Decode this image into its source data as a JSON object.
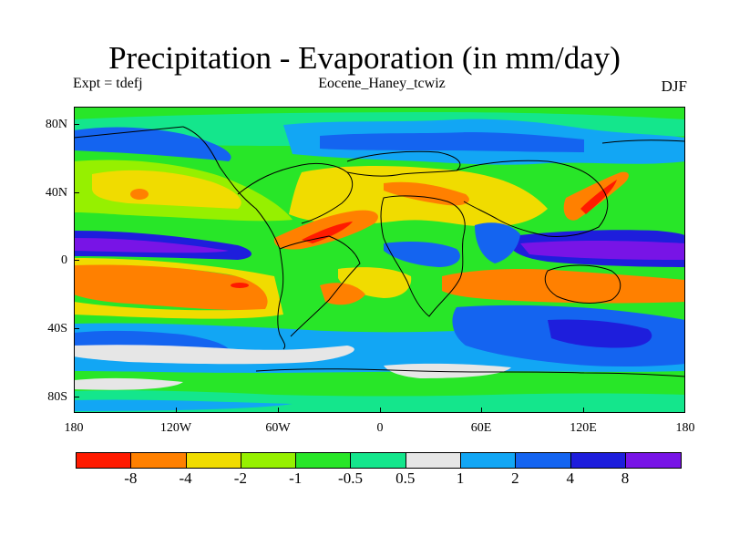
{
  "title": "Precipitation - Evaporation (in mm/day)",
  "subtitle_left": "Expt = tdefj",
  "subtitle_center": "Eocene_Haney_tcwiz",
  "subtitle_right": "DJF",
  "lat_labels": [
    "80N",
    "40N",
    "0",
    "40S",
    "80S"
  ],
  "lon_labels": [
    "180",
    "120W",
    "60W",
    "0",
    "60E",
    "120E",
    "180"
  ],
  "colorbar": {
    "colors": [
      "#ff1a00",
      "#ff8000",
      "#f0dc00",
      "#96f000",
      "#28e628",
      "#14e68c",
      "#e6e6e6",
      "#12a6f4",
      "#1464f0",
      "#1e1edc",
      "#7814e6"
    ],
    "labels": [
      "-8",
      "-4",
      "-2",
      "-1",
      "-0.5",
      "0.5",
      "1",
      "2",
      "4",
      "8"
    ]
  },
  "map": {
    "projection": "cylindrical-equidistant",
    "lat_range": [
      -90,
      90
    ],
    "lon_range": [
      -180,
      180
    ],
    "coastlines": "continent-outline"
  }
}
